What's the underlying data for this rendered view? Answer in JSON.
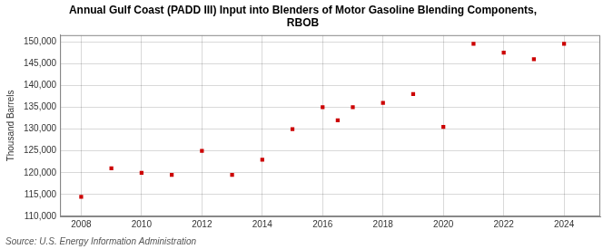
{
  "chart_data": {
    "type": "scatter",
    "title": "Annual Gulf Coast (PADD III) Input into Blenders of Motor Gasoline Blending Components,\nRBOB",
    "ylabel": "Thousand Barrels",
    "annotations": [
      "Source: U.S. Energy Information Administration"
    ],
    "x": [
      2008,
      2009,
      2010,
      2011,
      2012,
      2013,
      2014,
      2015,
      2016,
      2016.5,
      2017,
      2018,
      2019,
      2020,
      2021,
      2022,
      2023,
      2024
    ],
    "values": [
      114500,
      121000,
      120000,
      119500,
      125000,
      119500,
      123000,
      130000,
      135000,
      132000,
      135000,
      136000,
      138000,
      130500,
      149500,
      147500,
      146000,
      149500
    ],
    "color": "#cc0000",
    "marker": "square",
    "xlim": [
      2007.3,
      2025.2
    ],
    "ylim": [
      110000,
      151500
    ],
    "xticks": [
      2008,
      2010,
      2012,
      2014,
      2016,
      2018,
      2020,
      2022,
      2024
    ],
    "yticks": [
      {
        "value": 110000,
        "label": "110,000"
      },
      {
        "value": 115000,
        "label": "115,000"
      },
      {
        "value": 120000,
        "label": "120,000"
      },
      {
        "value": 125000,
        "label": "125,000"
      },
      {
        "value": 130000,
        "label": "130,000"
      },
      {
        "value": 135000,
        "label": "135,000"
      },
      {
        "value": 140000,
        "label": "140,000"
      },
      {
        "value": 145000,
        "label": "145,000"
      },
      {
        "value": 150000,
        "label": "150,000"
      }
    ],
    "grid": true
  }
}
